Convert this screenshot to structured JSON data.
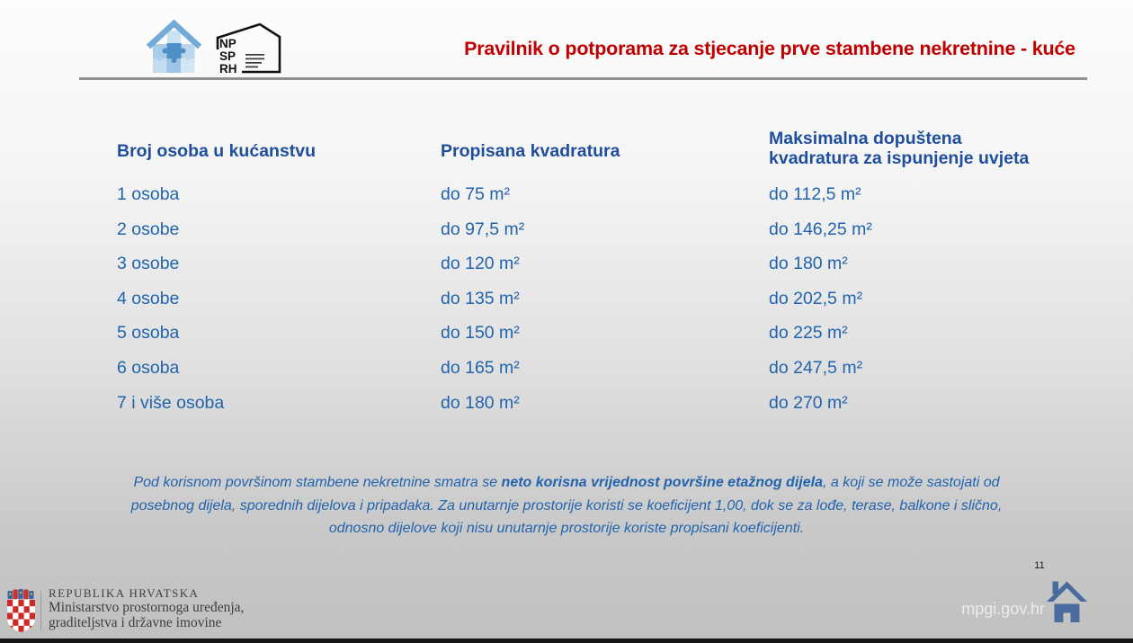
{
  "header": {
    "title": "Pravilnik o potporama za stjecanje prve stambene nekretnine - kuće",
    "logo_np": [
      "NP",
      "SP",
      "RH"
    ]
  },
  "table": {
    "columns": [
      "Broj osoba u kućanstvu",
      "Propisana kvadratura",
      "Maksimalna dopuštena kvadratura za ispunjenje uvjeta"
    ],
    "rows": [
      [
        "1 osoba",
        "do 75 m²",
        "do 112,5 m²"
      ],
      [
        "2 osobe",
        "do 97,5 m²",
        "do 146,25 m²"
      ],
      [
        "3 osobe",
        "do 120 m²",
        "do 180 m²"
      ],
      [
        "4 osobe",
        "do 135 m²",
        "do 202,5 m²"
      ],
      [
        "5 osoba",
        "do 150 m²",
        "do 225 m²"
      ],
      [
        "6 osoba",
        "do 165 m²",
        "do 247,5 m²"
      ],
      [
        "7 i više osoba",
        "do 180 m²",
        "do 270 m²"
      ]
    ]
  },
  "note": {
    "lines": [
      [
        {
          "t": "Pod korisnom površinom stambene nekretnine smatra se ",
          "b": false
        },
        {
          "t": "neto korisna vrijednost površine etažnog dijela",
          "b": true
        },
        {
          "t": ", a koji se može sastojati od",
          "b": false
        }
      ],
      [
        {
          "t": "posebnog dijela, sporednih dijelova i pripadaka. Za unutarnje prostorije koristi se koeficijent 1,00, dok se za lođe, terase, balkone i slično,",
          "b": false
        }
      ],
      [
        {
          "t": "odnosno dijelove koji nisu unutarnje prostorije koriste propisani koeficijenti.",
          "b": false
        }
      ]
    ]
  },
  "footer": {
    "country": "REPUBLIKA HRVATSKA",
    "ministry_line1": "Ministarstvo prostornoga uređenja,",
    "ministry_line2": "graditeljstva i državne imovine",
    "website": "mpgi.gov.hr",
    "page_number": "11"
  },
  "colors": {
    "title_red": "#C00000",
    "header_blue": "#1F4E9C",
    "body_blue": "#2164AE",
    "note_blue": "#2263AE",
    "house_icon_blue": "#4A6B9D",
    "logo_roof_blue": "#74AAD8",
    "coat_red": "#CD2A27",
    "bottom_bar": "#161616"
  }
}
